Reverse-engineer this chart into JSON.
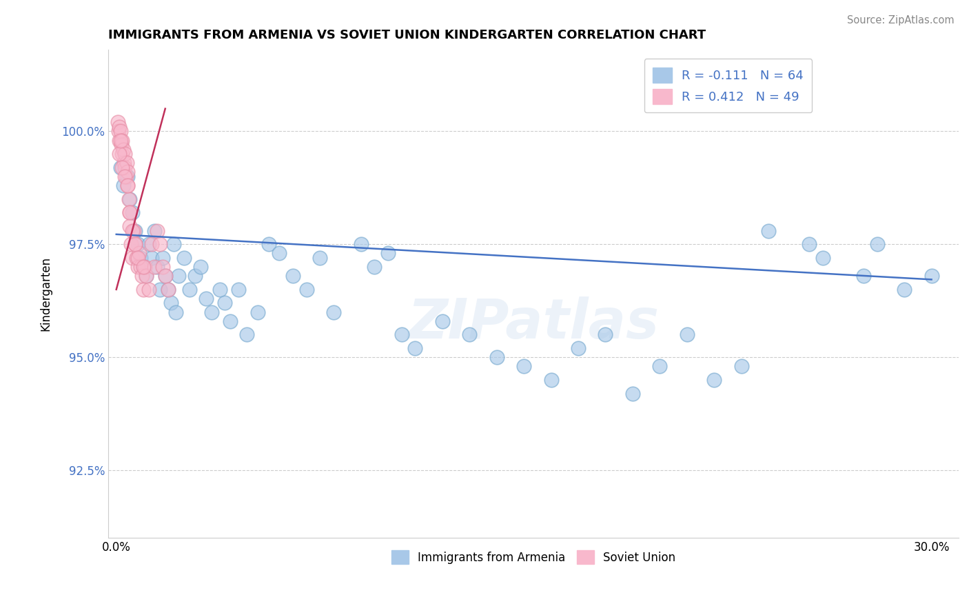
{
  "title": "IMMIGRANTS FROM ARMENIA VS SOVIET UNION KINDERGARTEN CORRELATION CHART",
  "source": "Source: ZipAtlas.com",
  "ylabel": "Kindergarten",
  "xlim": [
    -0.3,
    31.0
  ],
  "ylim": [
    91.0,
    101.8
  ],
  "yticks": [
    92.5,
    95.0,
    97.5,
    100.0
  ],
  "ytick_labels": [
    "92.5%",
    "95.0%",
    "97.5%",
    "100.0%"
  ],
  "xticks": [
    0.0,
    3.0,
    6.0,
    9.0,
    12.0,
    15.0,
    18.0,
    21.0,
    24.0,
    27.0,
    30.0
  ],
  "xtick_labels": [
    "0.0%",
    "",
    "",
    "",
    "",
    "",
    "",
    "",
    "",
    "",
    "30.0%"
  ],
  "watermark": "ZIPatlas",
  "blue_color": "#a8c8e8",
  "blue_edge": "#7aabd0",
  "pink_color": "#f8b8cc",
  "pink_edge": "#e890a8",
  "trend_blue_color": "#4472c4",
  "trend_pink_color": "#c0305a",
  "blue_trend_x0": 0.0,
  "blue_trend_y0": 97.72,
  "blue_trend_x1": 30.0,
  "blue_trend_y1": 96.72,
  "pink_trend_x0": 0.0,
  "pink_trend_y0": 96.5,
  "pink_trend_x1": 1.8,
  "pink_trend_y1": 100.5,
  "arm_x": [
    0.15,
    0.25,
    0.4,
    0.5,
    0.6,
    0.7,
    0.8,
    0.9,
    1.0,
    1.1,
    1.2,
    1.3,
    1.4,
    1.5,
    1.6,
    1.7,
    1.8,
    1.9,
    2.0,
    2.1,
    2.2,
    2.3,
    2.5,
    2.7,
    2.9,
    3.1,
    3.3,
    3.5,
    3.8,
    4.0,
    4.2,
    4.5,
    4.8,
    5.2,
    5.6,
    6.0,
    6.5,
    7.0,
    7.5,
    8.0,
    9.0,
    10.0,
    10.5,
    11.0,
    12.0,
    13.0,
    14.0,
    15.0,
    16.0,
    17.0,
    18.0,
    19.0,
    20.0,
    21.0,
    22.0,
    23.0,
    24.0,
    25.5,
    26.0,
    27.5,
    28.0,
    29.0,
    30.0,
    9.5
  ],
  "arm_y": [
    99.2,
    98.8,
    99.0,
    98.5,
    98.2,
    97.8,
    97.5,
    97.2,
    97.0,
    96.8,
    97.5,
    97.2,
    97.8,
    97.0,
    96.5,
    97.2,
    96.8,
    96.5,
    96.2,
    97.5,
    96.0,
    96.8,
    97.2,
    96.5,
    96.8,
    97.0,
    96.3,
    96.0,
    96.5,
    96.2,
    95.8,
    96.5,
    95.5,
    96.0,
    97.5,
    97.3,
    96.8,
    96.5,
    97.2,
    96.0,
    97.5,
    97.3,
    95.5,
    95.2,
    95.8,
    95.5,
    95.0,
    94.8,
    94.5,
    95.2,
    95.5,
    94.2,
    94.8,
    95.5,
    94.5,
    94.8,
    97.8,
    97.5,
    97.2,
    96.8,
    97.5,
    96.5,
    96.8,
    97.0
  ],
  "sov_x": [
    0.05,
    0.08,
    0.1,
    0.12,
    0.15,
    0.18,
    0.2,
    0.22,
    0.25,
    0.28,
    0.3,
    0.32,
    0.35,
    0.38,
    0.4,
    0.42,
    0.45,
    0.48,
    0.5,
    0.55,
    0.6,
    0.65,
    0.7,
    0.75,
    0.8,
    0.85,
    0.9,
    0.95,
    1.0,
    1.05,
    1.1,
    1.2,
    1.3,
    1.4,
    1.5,
    1.6,
    1.7,
    1.8,
    1.9,
    0.1,
    0.15,
    0.2,
    0.3,
    0.4,
    0.5,
    0.6,
    0.7,
    0.8,
    1.0
  ],
  "sov_y": [
    100.2,
    100.0,
    99.8,
    100.1,
    100.0,
    99.7,
    99.5,
    99.8,
    99.6,
    99.3,
    99.5,
    99.2,
    99.0,
    99.3,
    99.1,
    98.8,
    98.5,
    98.2,
    97.9,
    97.5,
    97.2,
    97.8,
    97.5,
    97.2,
    97.0,
    97.3,
    97.0,
    96.8,
    96.5,
    97.0,
    96.8,
    96.5,
    97.5,
    97.0,
    97.8,
    97.5,
    97.0,
    96.8,
    96.5,
    99.5,
    99.8,
    99.2,
    99.0,
    98.8,
    98.2,
    97.8,
    97.5,
    97.2,
    97.0
  ]
}
